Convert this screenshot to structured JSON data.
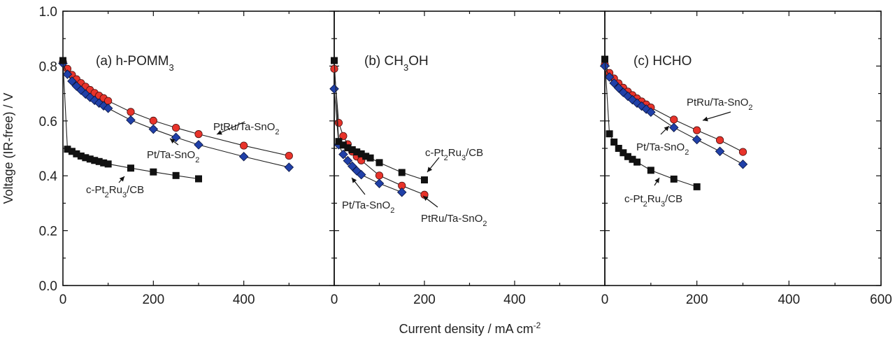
{
  "chart_data": [
    {
      "type": "line",
      "panel_label": "(a) h-POMM",
      "panel_label_sub": "3",
      "xlabel": "Current density / mA cm",
      "xlabel_sup": "-2",
      "ylabel": "Voltage (IR-free) / V",
      "xlim": [
        0,
        600
      ],
      "ylim": [
        0,
        1
      ],
      "x_ticks": [
        "0",
        "200",
        "400"
      ],
      "y_ticks": [
        "0.0",
        "0.2",
        "0.4",
        "0.6",
        "0.8",
        "1.0"
      ],
      "grid": false,
      "series": [
        {
          "name": "PtRu/Ta-SnO2",
          "marker": "circle",
          "color": "#e8332a",
          "x": [
            0,
            10,
            20,
            30,
            40,
            50,
            60,
            70,
            80,
            90,
            100,
            150,
            200,
            250,
            300,
            400,
            500
          ],
          "y": [
            0.815,
            0.79,
            0.768,
            0.752,
            0.738,
            0.725,
            0.713,
            0.702,
            0.692,
            0.683,
            0.673,
            0.633,
            0.601,
            0.575,
            0.552,
            0.51,
            0.473
          ]
        },
        {
          "name": "Pt/Ta-SnO2",
          "marker": "diamond",
          "color": "#2040a8",
          "x": [
            0,
            10,
            20,
            30,
            40,
            50,
            60,
            70,
            80,
            90,
            100,
            150,
            200,
            250,
            300,
            400,
            500
          ],
          "y": [
            0.81,
            0.77,
            0.745,
            0.727,
            0.712,
            0.698,
            0.686,
            0.675,
            0.665,
            0.655,
            0.646,
            0.603,
            0.57,
            0.54,
            0.513,
            0.47,
            0.431
          ]
        },
        {
          "name": "c-Pt2Ru3/CB",
          "marker": "square",
          "color": "#111111",
          "x": [
            0,
            10,
            20,
            30,
            40,
            50,
            60,
            70,
            80,
            90,
            100,
            150,
            200,
            250,
            300
          ],
          "y": [
            0.82,
            0.497,
            0.489,
            0.48,
            0.472,
            0.466,
            0.461,
            0.456,
            0.452,
            0.447,
            0.443,
            0.428,
            0.414,
            0.401,
            0.389
          ]
        }
      ],
      "annotations": [
        {
          "text": "PtRu/Ta-SnO",
          "sub": "2",
          "series": "PtRu/Ta-SnO2"
        },
        {
          "text": "Pt/Ta-SnO",
          "sub": "2",
          "series": "Pt/Ta-SnO2"
        },
        {
          "text": "c-Pt",
          "parts": [
            [
              "c-Pt",
              ""
            ],
            [
              "2",
              "sub"
            ],
            [
              "Ru",
              ""
            ],
            [
              "3",
              "sub"
            ],
            [
              "/CB",
              ""
            ]
          ],
          "series": "c-Pt2Ru3/CB"
        }
      ]
    },
    {
      "type": "line",
      "panel_label": "(b) CH",
      "panel_label_sub": "3",
      "panel_label_tail": "OH",
      "xlim": [
        0,
        600
      ],
      "ylim": [
        0,
        1
      ],
      "x_ticks": [
        "0",
        "200",
        "400"
      ],
      "series": [
        {
          "name": "PtRu/Ta-SnO2",
          "marker": "circle",
          "color": "#e8332a",
          "x": [
            0,
            10,
            20,
            30,
            40,
            50,
            60,
            100,
            150,
            200
          ],
          "y": [
            0.79,
            0.593,
            0.545,
            0.515,
            0.488,
            0.47,
            0.456,
            0.401,
            0.364,
            0.331
          ]
        },
        {
          "name": "Pt/Ta-SnO2",
          "marker": "diamond",
          "color": "#2040a8",
          "x": [
            0,
            10,
            20,
            30,
            40,
            50,
            60,
            100,
            150
          ],
          "y": [
            0.717,
            0.513,
            0.478,
            0.455,
            0.435,
            0.418,
            0.404,
            0.372,
            0.34
          ]
        },
        {
          "name": "c-Pt2Ru3/CB",
          "marker": "square",
          "color": "#111111",
          "x": [
            0,
            10,
            20,
            30,
            40,
            50,
            60,
            70,
            80,
            100,
            150,
            200
          ],
          "y": [
            0.82,
            0.525,
            0.512,
            0.502,
            0.495,
            0.487,
            0.48,
            0.471,
            0.465,
            0.448,
            0.412,
            0.385
          ]
        }
      ],
      "annotations": [
        {
          "parts": [
            [
              "c-Pt",
              ""
            ],
            [
              "2",
              "sub"
            ],
            [
              "Ru",
              ""
            ],
            [
              "3",
              "sub"
            ],
            [
              "/CB",
              ""
            ]
          ],
          "series": "c-Pt2Ru3/CB"
        },
        {
          "parts": [
            [
              "Pt/Ta-SnO",
              ""
            ],
            [
              "2",
              "sub"
            ]
          ],
          "series": "Pt/Ta-SnO2"
        },
        {
          "parts": [
            [
              "PtRu/Ta-SnO",
              ""
            ],
            [
              "2",
              "sub"
            ]
          ],
          "series": "PtRu/Ta-SnO2"
        }
      ]
    },
    {
      "type": "line",
      "panel_label": "(c) HCHO",
      "xlim": [
        0,
        600
      ],
      "ylim": [
        0,
        1
      ],
      "x_ticks": [
        "0",
        "200",
        "400",
        "600"
      ],
      "series": [
        {
          "name": "PtRu/Ta-SnO2",
          "marker": "circle",
          "color": "#e8332a",
          "x": [
            0,
            10,
            20,
            30,
            40,
            50,
            60,
            70,
            80,
            90,
            100,
            150,
            200,
            250,
            300
          ],
          "y": [
            0.805,
            0.775,
            0.755,
            0.737,
            0.721,
            0.707,
            0.694,
            0.682,
            0.671,
            0.66,
            0.649,
            0.605,
            0.566,
            0.53,
            0.487
          ]
        },
        {
          "name": "Pt/Ta-SnO2",
          "marker": "diamond",
          "color": "#2040a8",
          "x": [
            0,
            10,
            20,
            30,
            40,
            50,
            60,
            70,
            80,
            90,
            100,
            150,
            200,
            250,
            300
          ],
          "y": [
            0.8,
            0.76,
            0.738,
            0.72,
            0.704,
            0.69,
            0.677,
            0.665,
            0.654,
            0.643,
            0.632,
            0.576,
            0.532,
            0.489,
            0.442
          ]
        },
        {
          "name": "c-Pt2Ru3/CB",
          "marker": "square",
          "color": "#111111",
          "x": [
            0,
            10,
            20,
            30,
            40,
            50,
            60,
            70,
            100,
            150,
            200
          ],
          "y": [
            0.825,
            0.553,
            0.523,
            0.5,
            0.484,
            0.47,
            0.46,
            0.45,
            0.42,
            0.388,
            0.36
          ]
        }
      ],
      "annotations": [
        {
          "parts": [
            [
              "PtRu/Ta-SnO",
              ""
            ],
            [
              "2",
              "sub"
            ]
          ],
          "series": "PtRu/Ta-SnO2"
        },
        {
          "parts": [
            [
              "Pt/Ta-SnO",
              ""
            ],
            [
              "2",
              "sub"
            ]
          ],
          "series": "Pt/Ta-SnO2"
        },
        {
          "parts": [
            [
              "c-Pt",
              ""
            ],
            [
              "2",
              "sub"
            ],
            [
              "Ru",
              ""
            ],
            [
              "3",
              "sub"
            ],
            [
              "/CB",
              ""
            ]
          ],
          "series": "c-Pt2Ru3/CB"
        }
      ]
    }
  ]
}
